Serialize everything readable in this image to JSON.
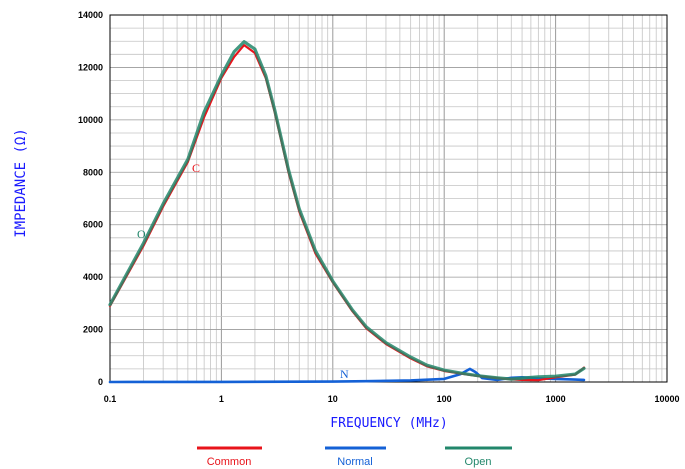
{
  "chart_data": {
    "type": "line",
    "xscale": "log",
    "xlim": [
      0.1,
      10000
    ],
    "ylim": [
      0,
      14000
    ],
    "xlabel": "FREQUENCY (MHz)",
    "ylabel": "IMPEDANCE (Ω)",
    "grid": true,
    "legend_position": "bottom",
    "xticks": [
      "0.1",
      "1",
      "10",
      "100",
      "1000",
      "10000"
    ],
    "yticks": [
      "0",
      "2000",
      "4000",
      "6000",
      "8000",
      "10000",
      "12000",
      "14000"
    ],
    "series": [
      {
        "name": "Common",
        "color": "#e8141b",
        "label": "C",
        "x": [
          0.1,
          0.2,
          0.3,
          0.5,
          0.7,
          1,
          1.3,
          1.6,
          2,
          2.5,
          3,
          4,
          5,
          7,
          10,
          15,
          20,
          30,
          50,
          70,
          100,
          150,
          200,
          300,
          400,
          500,
          700,
          1000,
          1500,
          1800
        ],
        "values": [
          2900,
          5200,
          6700,
          8400,
          10100,
          11600,
          12400,
          12850,
          12550,
          11600,
          10300,
          8000,
          6500,
          4900,
          3800,
          2700,
          2050,
          1450,
          900,
          600,
          420,
          300,
          230,
          150,
          100,
          80,
          70,
          180,
          280,
          550
        ]
      },
      {
        "name": "Normal",
        "color": "#1461d6",
        "label": "N",
        "x": [
          0.1,
          1,
          10,
          20,
          50,
          100,
          140,
          170,
          190,
          220,
          300,
          400,
          500,
          700,
          1000,
          1500,
          1800
        ],
        "values": [
          0,
          5,
          15,
          30,
          60,
          120,
          300,
          500,
          380,
          150,
          80,
          160,
          180,
          140,
          120,
          90,
          80
        ]
      },
      {
        "name": "Open",
        "color": "#22876b",
        "label": "O",
        "x": [
          0.1,
          0.2,
          0.3,
          0.5,
          0.7,
          1,
          1.3,
          1.6,
          2,
          2.5,
          3,
          4,
          5,
          7,
          10,
          15,
          20,
          30,
          50,
          70,
          100,
          150,
          200,
          300,
          400,
          500,
          700,
          1000,
          1500,
          1800
        ],
        "values": [
          2950,
          5300,
          6800,
          8500,
          10300,
          11700,
          12600,
          12980,
          12700,
          11700,
          10400,
          8100,
          6600,
          5000,
          3850,
          2750,
          2100,
          1500,
          950,
          640,
          450,
          320,
          240,
          160,
          110,
          150,
          200,
          220,
          300,
          520
        ]
      }
    ]
  }
}
